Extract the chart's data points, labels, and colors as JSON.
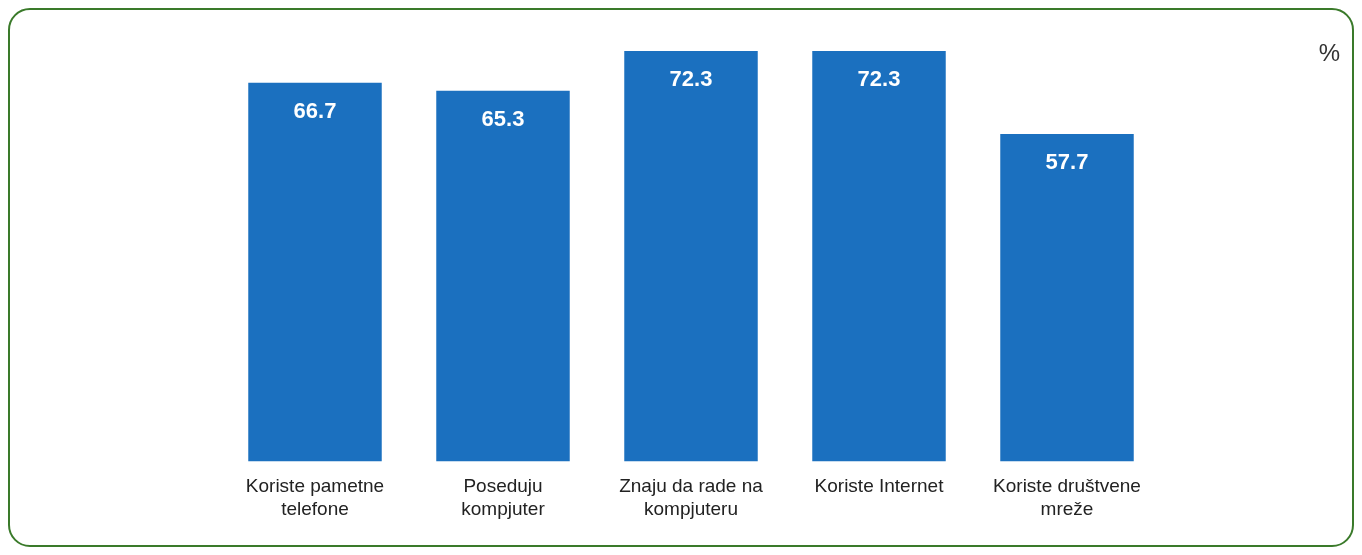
{
  "chart_data": {
    "type": "bar",
    "annotations": [
      "%"
    ],
    "categories": [
      "Koriste pametne telefone",
      "Poseduju kompjuter",
      "Znaju da rade na kompjuteru",
      "Koriste Internet",
      "Koriste društvene mreže"
    ],
    "values": [
      66.7,
      65.3,
      72.3,
      72.3,
      57.7
    ],
    "color": "#1b70bf",
    "data_labels": true,
    "grid": false,
    "legend": false
  }
}
